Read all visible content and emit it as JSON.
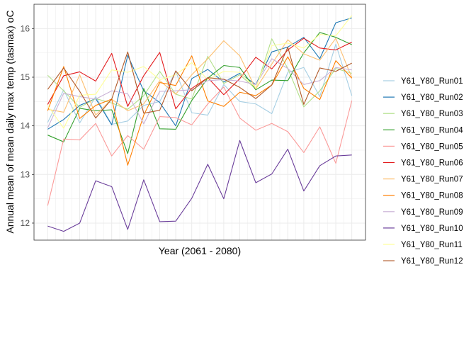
{
  "chart_data": {
    "type": "line",
    "xlabel": "Year (2061 - 2080)",
    "ylabel": "Annual mean of mean daily max temp (tasmax) oC",
    "x": [
      2061,
      2062,
      2063,
      2064,
      2065,
      2066,
      2067,
      2068,
      2069,
      2070,
      2071,
      2072,
      2073,
      2074,
      2075,
      2076,
      2077,
      2078,
      2079,
      2080
    ],
    "x_tick_labels_shown": false,
    "ylim": [
      11.65,
      16.5
    ],
    "yticks": [
      12,
      13,
      14,
      15,
      16
    ],
    "grid": true,
    "legend_position": "right",
    "series": [
      {
        "name": "Y61_Y80_Run01",
        "color": "#a6cee3",
        "values": [
          14.07,
          14.74,
          14.06,
          14.6,
          14.03,
          14.1,
          14.42,
          14.5,
          15.12,
          14.27,
          14.22,
          14.85,
          14.5,
          14.45,
          14.25,
          15.1,
          15.2,
          14.6,
          15.68,
          14.62
        ]
      },
      {
        "name": "Y61_Y80_Run02",
        "color": "#1f78b4",
        "values": [
          13.93,
          14.13,
          14.42,
          14.56,
          14.02,
          15.45,
          14.72,
          14.48,
          14.0,
          14.97,
          15.16,
          14.9,
          15.08,
          14.85,
          15.52,
          15.62,
          15.82,
          15.38,
          16.12,
          16.22
        ]
      },
      {
        "name": "Y61_Y80_Run03",
        "color": "#b2df8a",
        "values": [
          15.04,
          14.72,
          14.38,
          14.56,
          14.47,
          14.34,
          14.62,
          15.12,
          14.65,
          14.55,
          15.43,
          14.87,
          15.05,
          14.76,
          15.79,
          15.18,
          14.39,
          14.72,
          15.18,
          15.08
        ]
      },
      {
        "name": "Y61_Y80_Run04",
        "color": "#33a02c",
        "values": [
          13.81,
          13.67,
          14.36,
          14.31,
          14.33,
          13.43,
          14.77,
          13.94,
          13.93,
          14.52,
          14.98,
          15.24,
          15.2,
          14.74,
          14.94,
          14.93,
          15.5,
          15.92,
          15.82,
          15.67
        ]
      },
      {
        "name": "Y61_Y80_Run05",
        "color": "#fb9a99",
        "values": [
          12.36,
          13.73,
          13.71,
          14.05,
          13.38,
          13.8,
          13.52,
          14.19,
          14.17,
          14.02,
          14.45,
          14.8,
          14.16,
          13.91,
          14.05,
          13.88,
          13.45,
          13.98,
          13.23,
          14.52
        ]
      },
      {
        "name": "Y61_Y80_Run06",
        "color": "#e31a1c",
        "values": [
          14.44,
          15.03,
          15.11,
          14.92,
          15.49,
          14.4,
          15.03,
          15.51,
          14.35,
          14.77,
          14.99,
          14.64,
          14.97,
          15.41,
          15.17,
          15.56,
          15.8,
          15.6,
          15.56,
          15.72
        ]
      },
      {
        "name": "Y61_Y80_Run07",
        "color": "#fdbf6f",
        "values": [
          14.34,
          14.28,
          15.05,
          14.22,
          14.55,
          14.31,
          14.45,
          14.93,
          14.65,
          15.05,
          15.38,
          15.75,
          15.44,
          14.76,
          15.27,
          15.77,
          15.48,
          15.35,
          15.8,
          14.99
        ]
      },
      {
        "name": "Y61_Y80_Run08",
        "color": "#ff7f00",
        "values": [
          14.31,
          15.22,
          14.15,
          14.42,
          14.55,
          13.19,
          14.22,
          14.89,
          14.83,
          15.44,
          14.51,
          14.4,
          14.69,
          14.62,
          14.84,
          15.42,
          14.77,
          14.54,
          15.34,
          14.98
        ]
      },
      {
        "name": "Y61_Y80_Run09",
        "color": "#cab2d6",
        "values": [
          13.96,
          14.67,
          14.6,
          14.55,
          14.72,
          14.66,
          14.04,
          14.71,
          14.72,
          14.74,
          14.93,
          14.95,
          14.92,
          14.85,
          15.38,
          15.18,
          14.85,
          14.93,
          15.2,
          15.15
        ]
      },
      {
        "name": "Y61_Y80_Run10",
        "color": "#6a3d9a",
        "values": [
          11.94,
          11.83,
          12.0,
          12.87,
          12.75,
          11.87,
          12.89,
          12.03,
          12.04,
          12.51,
          13.21,
          12.5,
          13.7,
          12.83,
          13.01,
          13.52,
          12.66,
          13.18,
          13.38,
          13.4
        ]
      },
      {
        "name": "Y61_Y80_Run11",
        "color": "#ffff99",
        "values": [
          14.42,
          13.95,
          14.63,
          14.65,
          15.15,
          15.1,
          15.22,
          14.95,
          15.05,
          15.3,
          14.95,
          15.12,
          15.1,
          14.78,
          15.65,
          15.7,
          15.6,
          15.88,
          15.85,
          16.27
        ]
      },
      {
        "name": "Y61_Y80_Run12",
        "color": "#b15928",
        "values": [
          14.75,
          15.19,
          14.71,
          14.16,
          14.55,
          15.52,
          14.26,
          14.32,
          15.13,
          14.72,
          14.99,
          14.96,
          14.79,
          14.56,
          14.84,
          15.62,
          14.44,
          15.19,
          15.12,
          15.29
        ]
      }
    ]
  }
}
